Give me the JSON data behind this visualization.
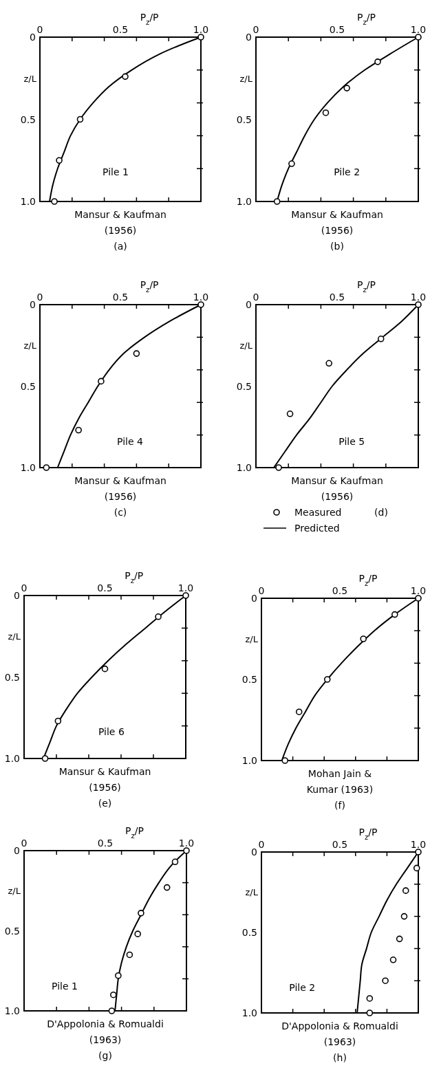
{
  "chart_data": [
    {
      "type": "line",
      "title": "Pile 1",
      "xlabel": "P$_{z}$/P",
      "ylabel": "z/L",
      "xlim": [
        0,
        1
      ],
      "ylim": [
        1,
        0
      ],
      "xticks": [
        {
          "value": 0,
          "label": "0"
        },
        {
          "value": 0.2,
          "label": null
        },
        {
          "value": 0.4,
          "label": null
        },
        {
          "value": 0.5,
          "label": "0.5"
        },
        {
          "value": 0.6,
          "label": null
        },
        {
          "value": 0.8,
          "label": null
        },
        {
          "value": 1,
          "label": "1.0"
        }
      ],
      "yticks": [
        {
          "value": 0,
          "label": "0"
        },
        {
          "value": 0.2,
          "label": null
        },
        {
          "value": 0.4,
          "label": null
        },
        {
          "value": 0.5,
          "label": "0.5"
        },
        {
          "value": 0.6,
          "label": null
        },
        {
          "value": 0.8,
          "label": null
        },
        {
          "value": 1,
          "label": "1.0"
        }
      ],
      "annotations": [
        "Mansur & Kaufman",
        "(1956)",
        "(a)"
      ],
      "series": [
        {
          "type": "line",
          "color": "#000000",
          "marker": "none",
          "x": [
            1,
            0.75,
            0.57,
            0.43,
            0.33,
            0.25,
            0.19,
            0.15,
            0.11,
            0.08,
            0.06
          ],
          "values": [
            0,
            0.1,
            0.2,
            0.3,
            0.4,
            0.5,
            0.6,
            0.7,
            0.8,
            0.9,
            1
          ]
        },
        {
          "type": "scatter",
          "color": "#000000",
          "marker": "circle",
          "x": [
            1,
            0.53,
            0.25,
            0.12,
            0.09
          ],
          "values": [
            0,
            0.24,
            0.5,
            0.75,
            1
          ]
        }
      ]
    },
    {
      "type": "line",
      "title": "Pile 2",
      "xlabel": "P$_{z}$/P",
      "ylabel": "z/L",
      "xlim": [
        0,
        1
      ],
      "ylim": [
        1,
        0
      ],
      "xticks": [
        {
          "value": 0,
          "label": "0"
        },
        {
          "value": 0.2,
          "label": null
        },
        {
          "value": 0.4,
          "label": null
        },
        {
          "value": 0.5,
          "label": "0.5"
        },
        {
          "value": 0.6,
          "label": null
        },
        {
          "value": 0.8,
          "label": null
        },
        {
          "value": 1,
          "label": "1.0"
        }
      ],
      "yticks": [
        {
          "value": 0,
          "label": "0"
        },
        {
          "value": 0.2,
          "label": null
        },
        {
          "value": 0.4,
          "label": null
        },
        {
          "value": 0.5,
          "label": "0.5"
        },
        {
          "value": 0.6,
          "label": null
        },
        {
          "value": 0.8,
          "label": null
        },
        {
          "value": 1,
          "label": "1.0"
        }
      ],
      "annotations": [
        "Mansur & Kaufman",
        "(1956)",
        "(b)"
      ],
      "series": [
        {
          "type": "line",
          "color": "#000000",
          "marker": "none",
          "x": [
            1,
            0.83,
            0.67,
            0.54,
            0.44,
            0.36,
            0.3,
            0.25,
            0.2,
            0.16,
            0.13
          ],
          "values": [
            0,
            0.1,
            0.2,
            0.3,
            0.4,
            0.5,
            0.6,
            0.7,
            0.8,
            0.9,
            1
          ]
        },
        {
          "type": "scatter",
          "color": "#000000",
          "marker": "circle",
          "x": [
            1,
            0.75,
            0.56,
            0.43,
            0.22,
            0.13
          ],
          "values": [
            0,
            0.15,
            0.31,
            0.46,
            0.77,
            1
          ]
        }
      ]
    },
    {
      "type": "line",
      "title": "Pile 4",
      "xlabel": "P$_{z}$/P",
      "ylabel": "z/L",
      "xlim": [
        0,
        1
      ],
      "ylim": [
        1,
        0
      ],
      "xticks": [
        {
          "value": 0,
          "label": "0"
        },
        {
          "value": 0.2,
          "label": null
        },
        {
          "value": 0.4,
          "label": null
        },
        {
          "value": 0.5,
          "label": "0.5"
        },
        {
          "value": 0.6,
          "label": null
        },
        {
          "value": 0.8,
          "label": null
        },
        {
          "value": 1,
          "label": "1.0"
        }
      ],
      "yticks": [
        {
          "value": 0,
          "label": "0"
        },
        {
          "value": 0.2,
          "label": null
        },
        {
          "value": 0.4,
          "label": null
        },
        {
          "value": 0.5,
          "label": "0.5"
        },
        {
          "value": 0.6,
          "label": null
        },
        {
          "value": 0.8,
          "label": null
        },
        {
          "value": 1,
          "label": "1.0"
        }
      ],
      "annotations": [
        "Mansur & Kaufman",
        "(1956)",
        "(c)"
      ],
      "series": [
        {
          "type": "line",
          "color": "#000000",
          "marker": "none",
          "x": [
            1,
            0.81,
            0.65,
            0.52,
            0.43,
            0.36,
            0.3,
            0.24,
            0.19,
            0.15,
            0.11
          ],
          "values": [
            0,
            0.1,
            0.2,
            0.3,
            0.4,
            0.5,
            0.6,
            0.7,
            0.8,
            0.9,
            1
          ]
        },
        {
          "type": "scatter",
          "color": "#000000",
          "marker": "circle",
          "x": [
            1,
            0.6,
            0.38,
            0.24,
            0.04
          ],
          "values": [
            0,
            0.3,
            0.47,
            0.77,
            1
          ]
        }
      ]
    },
    {
      "type": "line",
      "title": "Pile 5",
      "xlabel": "P$_{z}$/P",
      "ylabel": "z/L",
      "xlim": [
        0,
        1
      ],
      "ylim": [
        1,
        0
      ],
      "xticks": [
        {
          "value": 0,
          "label": "0"
        },
        {
          "value": 0.2,
          "label": null
        },
        {
          "value": 0.4,
          "label": null
        },
        {
          "value": 0.5,
          "label": "0.5"
        },
        {
          "value": 0.6,
          "label": null
        },
        {
          "value": 0.8,
          "label": null
        },
        {
          "value": 1,
          "label": "1.0"
        }
      ],
      "yticks": [
        {
          "value": 0,
          "label": "0"
        },
        {
          "value": 0.2,
          "label": null
        },
        {
          "value": 0.4,
          "label": null
        },
        {
          "value": 0.5,
          "label": "0.5"
        },
        {
          "value": 0.6,
          "label": null
        },
        {
          "value": 0.8,
          "label": null
        },
        {
          "value": 1,
          "label": "1.0"
        }
      ],
      "annotations": [
        "Mansur & Kaufman",
        "(1956)",
        "(d)"
      ],
      "legend": "bottom",
      "series": [
        {
          "type": "scatter",
          "name": "Measured",
          "color": "#000000",
          "marker": "circle",
          "x": [
            1,
            0.77,
            0.45,
            0.21,
            0.14
          ],
          "values": [
            0,
            0.21,
            0.36,
            0.67,
            1
          ]
        },
        {
          "type": "line",
          "name": "Predicted",
          "color": "#000000",
          "marker": "none",
          "x": [
            1,
            0.9,
            0.78,
            0.66,
            0.56,
            0.47,
            0.4,
            0.33,
            0.25,
            0.18,
            0.11
          ],
          "values": [
            0,
            0.1,
            0.2,
            0.3,
            0.4,
            0.5,
            0.6,
            0.7,
            0.8,
            0.9,
            1
          ]
        }
      ]
    },
    {
      "type": "line",
      "title": "Pile 6",
      "xlabel": "P$_{z}$/P",
      "ylabel": "z/L",
      "xlim": [
        0,
        1
      ],
      "ylim": [
        1,
        0
      ],
      "xticks": [
        {
          "value": 0,
          "label": "0"
        },
        {
          "value": 0.2,
          "label": null
        },
        {
          "value": 0.4,
          "label": null
        },
        {
          "value": 0.5,
          "label": "0.5"
        },
        {
          "value": 0.6,
          "label": null
        },
        {
          "value": 0.8,
          "label": null
        },
        {
          "value": 1,
          "label": "1.0"
        }
      ],
      "yticks": [
        {
          "value": 0,
          "label": "0"
        },
        {
          "value": 0.2,
          "label": null
        },
        {
          "value": 0.4,
          "label": null
        },
        {
          "value": 0.5,
          "label": "0.5"
        },
        {
          "value": 0.6,
          "label": null
        },
        {
          "value": 0.8,
          "label": null
        },
        {
          "value": 1,
          "label": "1.0"
        }
      ],
      "annotations": [
        "Mansur & Kaufman",
        "(1956)",
        "(e)"
      ],
      "series": [
        {
          "type": "line",
          "color": "#000000",
          "marker": "none",
          "x": [
            1,
            0.87,
            0.75,
            0.63,
            0.52,
            0.42,
            0.33,
            0.26,
            0.2,
            0.16,
            0.12
          ],
          "values": [
            0,
            0.1,
            0.2,
            0.3,
            0.4,
            0.5,
            0.6,
            0.7,
            0.8,
            0.9,
            1
          ]
        },
        {
          "type": "scatter",
          "color": "#000000",
          "marker": "circle",
          "x": [
            1,
            0.83,
            0.5,
            0.21,
            0.13
          ],
          "values": [
            0,
            0.13,
            0.45,
            0.77,
            1
          ]
        }
      ]
    },
    {
      "type": "line",
      "xlabel": "P$_{z}$/P",
      "ylabel": "z/L",
      "xlim": [
        0,
        1
      ],
      "ylim": [
        1,
        0
      ],
      "xticks": [
        {
          "value": 0,
          "label": "0"
        },
        {
          "value": 0.2,
          "label": null
        },
        {
          "value": 0.4,
          "label": null
        },
        {
          "value": 0.5,
          "label": "0.5"
        },
        {
          "value": 0.6,
          "label": null
        },
        {
          "value": 0.8,
          "label": null
        },
        {
          "value": 1,
          "label": "1.0"
        }
      ],
      "yticks": [
        {
          "value": 0,
          "label": "0"
        },
        {
          "value": 0.2,
          "label": null
        },
        {
          "value": 0.4,
          "label": null
        },
        {
          "value": 0.5,
          "label": "0.5"
        },
        {
          "value": 0.6,
          "label": null
        },
        {
          "value": 0.8,
          "label": null
        },
        {
          "value": 1,
          "label": "1.0"
        }
      ],
      "annotations": [
        "Mohan Jain &",
        "Kumar (1963)",
        "(f)"
      ],
      "series": [
        {
          "type": "line",
          "color": "#000000",
          "marker": "none",
          "x": [
            1,
            0.85,
            0.72,
            0.61,
            0.51,
            0.42,
            0.34,
            0.28,
            0.22,
            0.17,
            0.13
          ],
          "values": [
            0,
            0.1,
            0.2,
            0.3,
            0.4,
            0.5,
            0.6,
            0.7,
            0.8,
            0.9,
            1
          ]
        },
        {
          "type": "scatter",
          "color": "#000000",
          "marker": "circle",
          "x": [
            1,
            0.85,
            0.65,
            0.42,
            0.24,
            0.15
          ],
          "values": [
            0,
            0.1,
            0.25,
            0.5,
            0.7,
            1
          ]
        }
      ]
    },
    {
      "type": "line",
      "title": "Pile 1",
      "xlabel": "P$_{z}$/P",
      "ylabel": "z/L",
      "xlim": [
        0,
        1
      ],
      "ylim": [
        1,
        0
      ],
      "xticks": [
        {
          "value": 0,
          "label": "0"
        },
        {
          "value": 0.2,
          "label": null
        },
        {
          "value": 0.4,
          "label": null
        },
        {
          "value": 0.5,
          "label": "0.5"
        },
        {
          "value": 0.6,
          "label": null
        },
        {
          "value": 0.8,
          "label": null
        },
        {
          "value": 1,
          "label": "1.0"
        }
      ],
      "yticks": [
        {
          "value": 0,
          "label": "0"
        },
        {
          "value": 0.2,
          "label": null
        },
        {
          "value": 0.4,
          "label": null
        },
        {
          "value": 0.5,
          "label": "0.5"
        },
        {
          "value": 0.6,
          "label": null
        },
        {
          "value": 0.8,
          "label": null
        },
        {
          "value": 1,
          "label": "1.0"
        }
      ],
      "annotations": [
        "D'Appolonia & Romualdi",
        "(1963)",
        "(g)"
      ],
      "series": [
        {
          "type": "line",
          "color": "#000000",
          "marker": "none",
          "x": [
            1,
            0.9,
            0.83,
            0.77,
            0.72,
            0.67,
            0.63,
            0.6,
            0.58,
            0.57,
            0.56
          ],
          "values": [
            0,
            0.1,
            0.2,
            0.3,
            0.4,
            0.5,
            0.6,
            0.7,
            0.8,
            0.9,
            1
          ]
        },
        {
          "type": "scatter",
          "color": "#000000",
          "marker": "circle",
          "x": [
            1,
            0.93,
            0.88,
            0.72,
            0.7,
            0.65,
            0.58,
            0.55,
            0.54
          ],
          "values": [
            0,
            0.07,
            0.23,
            0.39,
            0.52,
            0.65,
            0.78,
            0.9,
            1
          ]
        }
      ]
    },
    {
      "type": "line",
      "title": "Pile 2",
      "xlabel": "P$_{z}$/P",
      "ylabel": "z/L",
      "xlim": [
        0,
        1
      ],
      "ylim": [
        1,
        0
      ],
      "xticks": [
        {
          "value": 0,
          "label": "0"
        },
        {
          "value": 0.2,
          "label": null
        },
        {
          "value": 0.4,
          "label": null
        },
        {
          "value": 0.5,
          "label": "0.5"
        },
        {
          "value": 0.6,
          "label": null
        },
        {
          "value": 0.8,
          "label": null
        },
        {
          "value": 1,
          "label": "1.0"
        }
      ],
      "yticks": [
        {
          "value": 0,
          "label": "0"
        },
        {
          "value": 0.2,
          "label": null
        },
        {
          "value": 0.4,
          "label": null
        },
        {
          "value": 0.5,
          "label": "0.5"
        },
        {
          "value": 0.6,
          "label": null
        },
        {
          "value": 0.8,
          "label": null
        },
        {
          "value": 1,
          "label": "1.0"
        }
      ],
      "annotations": [
        "D'Appolonia & Romualdi",
        "(1963)",
        "(h)"
      ],
      "series": [
        {
          "type": "line",
          "color": "#000000",
          "marker": "none",
          "x": [
            1,
            0.93,
            0.86,
            0.8,
            0.75,
            0.7,
            0.67,
            0.64,
            0.63,
            0.62,
            0.61
          ],
          "values": [
            0,
            0.1,
            0.2,
            0.3,
            0.4,
            0.5,
            0.6,
            0.7,
            0.8,
            0.9,
            1
          ]
        },
        {
          "type": "scatter",
          "color": "#000000",
          "marker": "circle",
          "x": [
            1,
            0.99,
            0.92,
            0.91,
            0.88,
            0.84,
            0.79,
            0.69,
            0.69
          ],
          "values": [
            0,
            0.1,
            0.24,
            0.4,
            0.54,
            0.67,
            0.8,
            0.91,
            1
          ]
        }
      ]
    }
  ]
}
